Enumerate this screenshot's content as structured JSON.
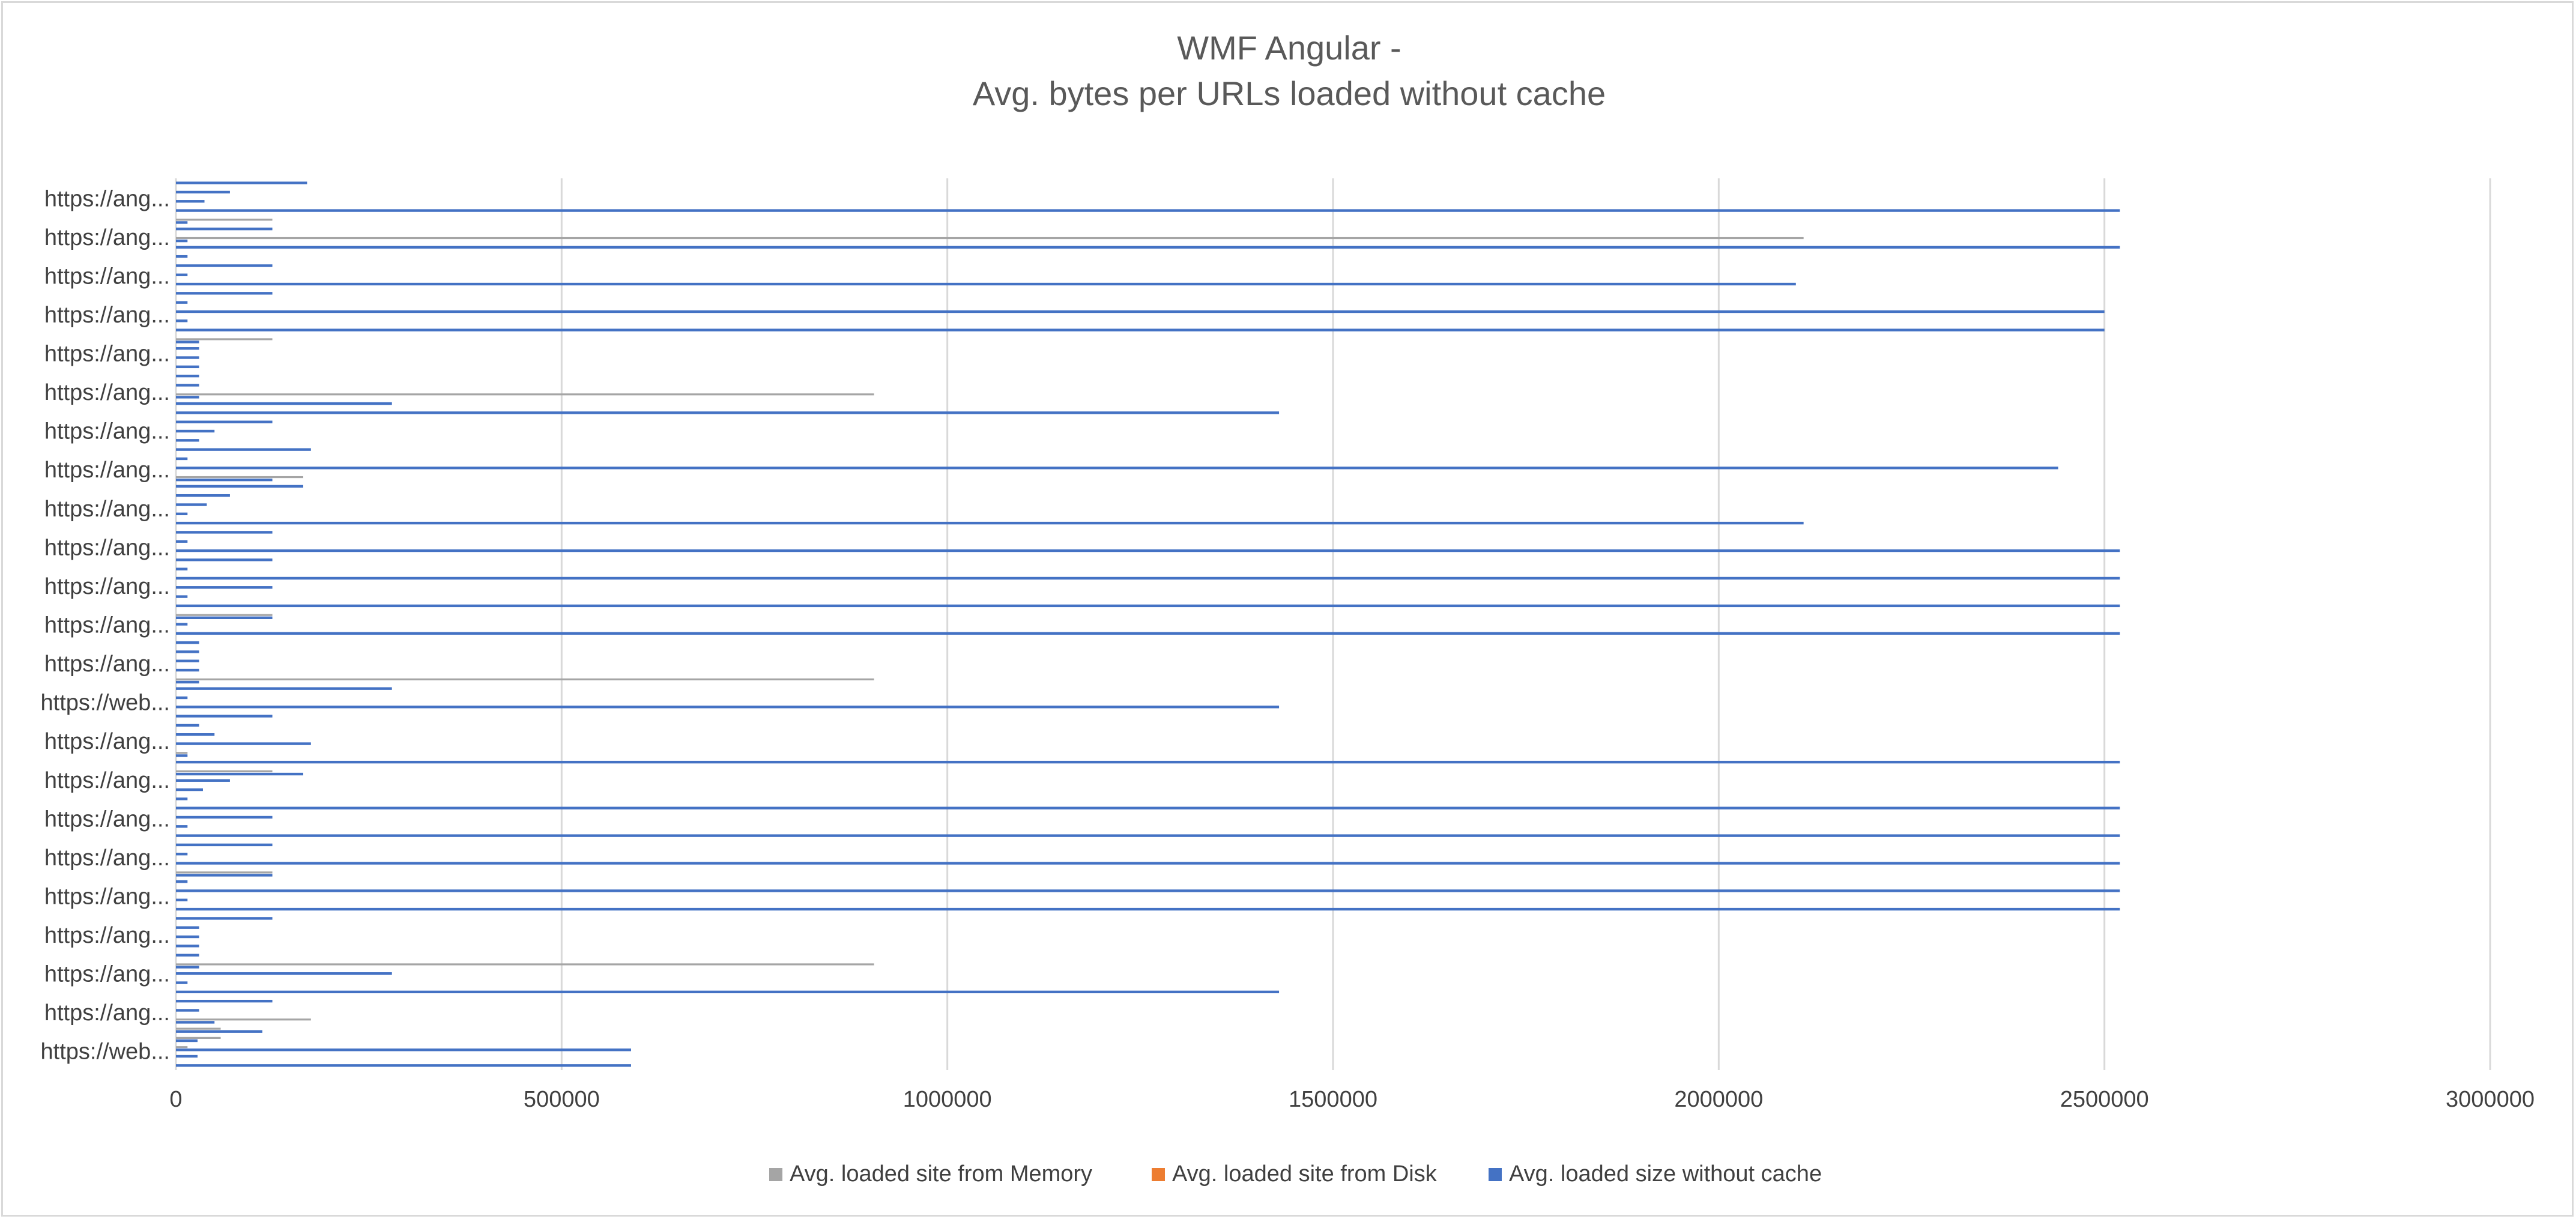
{
  "chart_data": {
    "type": "bar",
    "orientation": "horizontal",
    "title": [
      "WMF Angular -",
      "Avg. bytes per URLs loaded without cache"
    ],
    "xlabel": "",
    "ylabel": "",
    "xlim": [
      0,
      3000000
    ],
    "x_ticks": [
      "0",
      "500000",
      "1000000",
      "1500000",
      "2000000",
      "2500000",
      "3000000"
    ],
    "y_tick_labels": [
      "https://ang...",
      "https://ang...",
      "https://ang...",
      "https://ang...",
      "https://ang...",
      "https://ang...",
      "https://ang...",
      "https://ang...",
      "https://ang...",
      "https://ang...",
      "https://ang...",
      "https://ang...",
      "https://ang...",
      "https://web...",
      "https://ang...",
      "https://ang...",
      "https://ang...",
      "https://ang...",
      "https://ang...",
      "https://ang...",
      "https://ang...",
      "https://ang...",
      "https://web..."
    ],
    "grid": true,
    "legend_position": "bottom",
    "legend": [
      {
        "name": "Avg. loaded site from Memory",
        "color": "#a5a5a5"
      },
      {
        "name": "Avg. loaded site from Disk",
        "color": "#ed7d31"
      },
      {
        "name": "Avg. loaded size without cache",
        "color": "#4472c4"
      }
    ],
    "series_without_cache": [
      170000,
      70000,
      37000,
      2520000,
      15000,
      125000,
      15000,
      2520000,
      15000,
      125000,
      15000,
      2100000,
      125000,
      15000,
      2500000,
      15000,
      2500000,
      30000,
      30000,
      30000,
      30000,
      30000,
      30000,
      30000,
      280000,
      1430000,
      125000,
      50000,
      30000,
      175000,
      15000,
      2440000,
      125000,
      165000,
      70000,
      40000,
      15000,
      2110000,
      125000,
      15000,
      2520000,
      125000,
      15000,
      2520000,
      125000,
      15000,
      2520000,
      125000,
      15000,
      2520000,
      30000,
      30000,
      30000,
      30000,
      30000,
      280000,
      15000,
      1430000,
      125000,
      30000,
      50000,
      175000,
      15000,
      2520000,
      165000,
      70000,
      35000,
      15000,
      2520000,
      125000,
      15000,
      2520000,
      125000,
      15000,
      2520000,
      125000,
      15000,
      2520000,
      15000,
      2520000,
      125000,
      30000,
      30000,
      30000,
      30000,
      30000,
      280000,
      15000,
      1430000,
      125000,
      30000,
      50000,
      112000,
      28000,
      590000,
      28000,
      590000
    ],
    "series_from_memory": [
      0,
      0,
      0,
      0,
      125000,
      0,
      2110000,
      0,
      0,
      0,
      0,
      0,
      0,
      0,
      0,
      0,
      0,
      125000,
      0,
      0,
      0,
      0,
      0,
      905000,
      0,
      0,
      0,
      0,
      0,
      0,
      0,
      0,
      165000,
      0,
      0,
      0,
      0,
      0,
      0,
      0,
      0,
      0,
      0,
      0,
      0,
      0,
      0,
      125000,
      0,
      0,
      0,
      0,
      0,
      0,
      905000,
      0,
      0,
      0,
      0,
      0,
      0,
      0,
      15000,
      0,
      125000,
      0,
      0,
      0,
      0,
      0,
      0,
      0,
      0,
      0,
      0,
      125000,
      0,
      0,
      0,
      0,
      0,
      0,
      0,
      0,
      0,
      905000,
      0,
      0,
      0,
      0,
      0,
      175000,
      58000,
      58000,
      15000,
      0,
      0
    ]
  }
}
